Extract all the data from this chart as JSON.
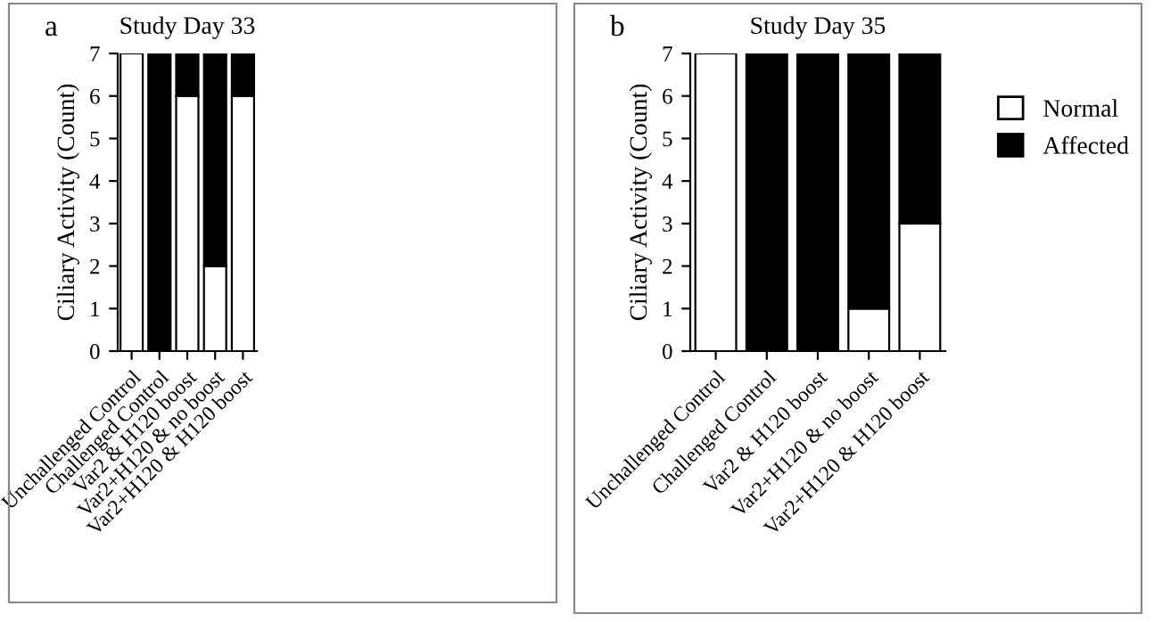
{
  "chart_data": [
    {
      "type": "bar",
      "stacked": true,
      "title": "Study Day 33",
      "ylabel": "Ciliary Activity (Count)",
      "annotations": [
        "a"
      ],
      "categories": [
        "Unchallenged Control",
        "Challenged Control",
        "Var2 & H120 boost",
        "Var2+H120 & no boost",
        "Var2+H120 & H120 boost"
      ],
      "series": [
        {
          "color": "#ffffff",
          "values": [
            7,
            0,
            6,
            2,
            6
          ]
        },
        {
          "color": "#000000",
          "values": [
            0,
            7,
            1,
            5,
            1
          ]
        }
      ],
      "ylim": [
        0,
        7
      ],
      "yticks": [
        0,
        1,
        2,
        3,
        4,
        5,
        6,
        7
      ],
      "grid": false,
      "legend": false
    },
    {
      "type": "bar",
      "stacked": true,
      "title": "Study Day 35",
      "ylabel": "Ciliary Activity (Count)",
      "annotations": [
        "b"
      ],
      "categories": [
        "Unchallenged Control",
        "Challenged Control",
        "Var2 & H120 boost",
        "Var2+H120 & no boost",
        "Var2+H120 & H120 boost"
      ],
      "series": [
        {
          "name": "Normal",
          "color": "#ffffff",
          "values": [
            7,
            0,
            0,
            1,
            3
          ]
        },
        {
          "name": "Affected",
          "color": "#000000",
          "values": [
            0,
            7,
            7,
            6,
            4
          ]
        }
      ],
      "ylim": [
        0,
        7
      ],
      "yticks": [
        0,
        1,
        2,
        3,
        4,
        5,
        6,
        7
      ],
      "grid": false,
      "legend": "right"
    }
  ]
}
